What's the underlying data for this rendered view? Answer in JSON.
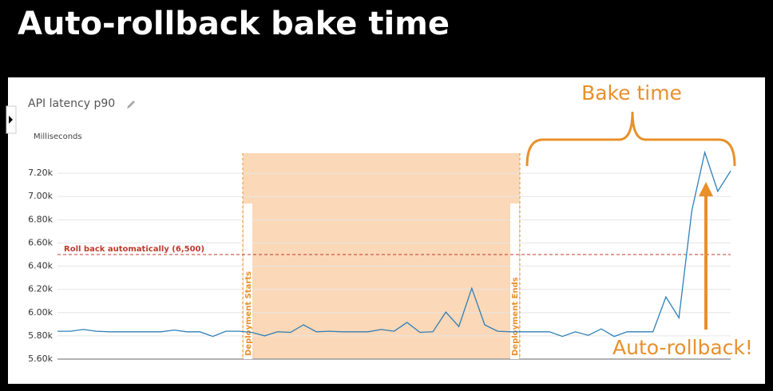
{
  "header": {
    "title": "Auto-rollback bake time"
  },
  "chart_data": {
    "type": "line",
    "title": "API latency p90",
    "y_label": "Milliseconds",
    "color": "#2e7fb8",
    "values": [
      5840,
      5840,
      5855,
      5840,
      5835,
      5835,
      5835,
      5835,
      5835,
      5850,
      5835,
      5835,
      5795,
      5840,
      5840,
      5830,
      5800,
      5835,
      5830,
      5895,
      5835,
      5840,
      5835,
      5835,
      5835,
      5855,
      5840,
      5915,
      5830,
      5835,
      6005,
      5880,
      6210,
      5895,
      5840,
      5835,
      5835,
      5835,
      5835,
      5795,
      5835,
      5805,
      5860,
      5795,
      5835,
      5835,
      5835,
      6135,
      5955,
      6880,
      7380,
      7045,
      7220
    ],
    "ylim": [
      5600,
      7400
    ],
    "yticks": [
      {
        "value": 5600,
        "label": "5.60k"
      },
      {
        "value": 5800,
        "label": "5.80k"
      },
      {
        "value": 6000,
        "label": "6.00k"
      },
      {
        "value": 6200,
        "label": "6.20k"
      },
      {
        "value": 6400,
        "label": "6.40k"
      },
      {
        "value": 6600,
        "label": "6.60k"
      },
      {
        "value": 6800,
        "label": "6.80k"
      },
      {
        "value": 7000,
        "label": "7.00k"
      },
      {
        "value": 7200,
        "label": "7.20k"
      }
    ],
    "grid": true,
    "threshold": {
      "value": 6500,
      "label": "Roll back automatically (6,500)",
      "color": "#c0392b"
    },
    "annotations": {
      "deployment_start": "Deployment Starts",
      "deployment_end": "Deployment Ends",
      "bake_time": "Bake time",
      "rollback": "Auto-rollback!",
      "color": "#e8902a"
    }
  }
}
